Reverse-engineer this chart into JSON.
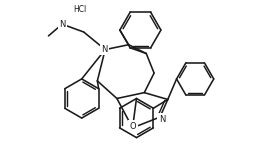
{
  "bg_color": "#ffffff",
  "line_color": "#1a1a1a",
  "lw": 1.15,
  "fs": 6.0,
  "figsize": [
    2.71,
    1.52
  ],
  "dpi": 100,
  "xlim": [
    -2.5,
    7.0
  ],
  "ylim": [
    -5.5,
    2.2
  ]
}
